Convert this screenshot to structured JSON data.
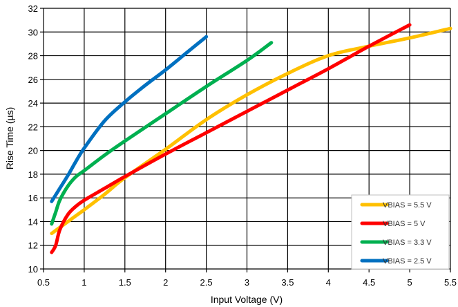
{
  "chart_data": {
    "type": "line",
    "xlabel": "Input Voltage (V)",
    "ylabel": "Rise Time (µs)",
    "xlim": [
      0.5,
      5.5
    ],
    "ylim": [
      10,
      32
    ],
    "xticks": [
      0.5,
      1,
      1.5,
      2,
      2.5,
      3,
      3.5,
      4,
      4.5,
      5,
      5.5
    ],
    "xtick_labels": [
      "0.5",
      "1",
      "1.5",
      "2",
      "2.5",
      "3",
      "3.5",
      "4",
      "4.5",
      "5",
      "5.5"
    ],
    "yticks": [
      10,
      12,
      14,
      16,
      18,
      20,
      22,
      24,
      26,
      28,
      30,
      32
    ],
    "ytick_labels": [
      "10",
      "12",
      "14",
      "16",
      "18",
      "20",
      "22",
      "24",
      "26",
      "28",
      "30",
      "32"
    ],
    "grid": true,
    "legend_position": "bottom-right",
    "series": [
      {
        "name": "VBIAS = 5.5 V",
        "color": "#FFC000",
        "x": [
          0.6,
          0.7,
          0.8,
          0.9,
          1.0,
          1.25,
          1.5,
          2.0,
          2.5,
          3.0,
          3.5,
          4.0,
          4.5,
          5.0,
          5.5
        ],
        "y": [
          13.0,
          13.5,
          14.0,
          14.5,
          15.0,
          16.3,
          17.7,
          20.1,
          22.6,
          24.7,
          26.5,
          28.0,
          28.8,
          29.5,
          30.3
        ]
      },
      {
        "name": "VBIAS = 5 V",
        "color": "#FF0000",
        "x": [
          0.6,
          0.65,
          0.7,
          0.8,
          0.9,
          1.0,
          1.25,
          1.5,
          2.0,
          2.5,
          3.0,
          3.5,
          4.0,
          4.5,
          5.0
        ],
        "y": [
          11.4,
          12.0,
          13.3,
          14.6,
          15.3,
          15.8,
          16.8,
          17.8,
          19.7,
          21.5,
          23.3,
          25.1,
          26.9,
          28.8,
          30.6
        ]
      },
      {
        "name": "VBIAS = 3.3 V",
        "color": "#00B050",
        "x": [
          0.6,
          0.65,
          0.7,
          0.8,
          0.9,
          1.0,
          1.25,
          1.5,
          2.0,
          2.5,
          3.0,
          3.3
        ],
        "y": [
          13.8,
          14.8,
          15.8,
          17.0,
          17.8,
          18.3,
          19.6,
          20.8,
          23.1,
          25.4,
          27.6,
          29.1
        ]
      },
      {
        "name": "VBIAS = 2.5 V",
        "color": "#0070C0",
        "x": [
          0.6,
          0.7,
          0.8,
          0.9,
          1.0,
          1.25,
          1.5,
          1.75,
          2.0,
          2.25,
          2.5
        ],
        "y": [
          15.7,
          16.8,
          17.9,
          19.1,
          20.2,
          22.5,
          24.1,
          25.5,
          26.8,
          28.2,
          29.6
        ]
      }
    ]
  }
}
